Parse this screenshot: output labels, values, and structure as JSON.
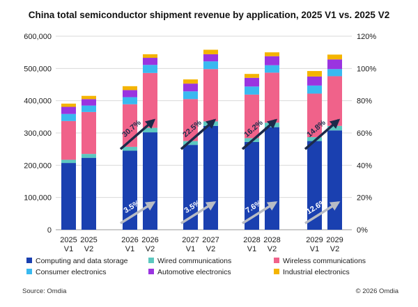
{
  "title": "China total semiconductor shipment revenue by application, 2025 V1 vs. 2025 V2",
  "source": "Source: Omdia",
  "copyright": "© 2026 Omdia",
  "colors": {
    "computing": "#1a40b0",
    "wired": "#5cc8c0",
    "wireless": "#f0628a",
    "consumer": "#39b9f0",
    "automotive": "#9a34e0",
    "industrial": "#f4b400",
    "arrow_v2": "#1c2a4a",
    "arrow_v1": "#b8bcc4"
  },
  "chart_data": {
    "type": "bar",
    "stacked": true,
    "title": "China total semiconductor shipment revenue by application, 2025 V1 vs. 2025 V2",
    "ylim": [
      0,
      600000
    ],
    "yticks": [
      "0",
      "100,000",
      "200,000",
      "300,000",
      "400,000",
      "500,000",
      "600,000"
    ],
    "y2lim": [
      0,
      120
    ],
    "y2ticks": [
      "0%",
      "20%",
      "40%",
      "60%",
      "80%",
      "100%",
      "120%"
    ],
    "groups": [
      {
        "year": "2025",
        "bars": [
          "V1",
          "V2"
        ]
      },
      {
        "year": "2026",
        "bars": [
          "V1",
          "V2"
        ]
      },
      {
        "year": "2027",
        "bars": [
          "V1",
          "V2"
        ]
      },
      {
        "year": "2028",
        "bars": [
          "V1",
          "V2"
        ]
      },
      {
        "year": "2029",
        "bars": [
          "V1",
          "V2"
        ]
      }
    ],
    "categories": [
      "2025 V1",
      "2025 V2",
      "2026 V1",
      "2026 V2",
      "2027 V1",
      "2027 V2",
      "2028 V1",
      "2028 V2",
      "2029 V1",
      "2029 V2"
    ],
    "series": [
      {
        "name": "Computing and data storage",
        "key": "computing",
        "values": [
          207000,
          223000,
          245000,
          302000,
          263000,
          322000,
          272000,
          318000,
          275000,
          308000
        ]
      },
      {
        "name": "Wired communications",
        "key": "wired",
        "values": [
          10000,
          12000,
          12000,
          14000,
          12000,
          14000,
          12000,
          14000,
          12000,
          14000
        ]
      },
      {
        "name": "Wireless communications",
        "key": "wireless",
        "values": [
          120000,
          130000,
          132000,
          170000,
          130000,
          162000,
          135000,
          155000,
          135000,
          154000
        ]
      },
      {
        "name": "Consumer electronics",
        "key": "consumer",
        "values": [
          22000,
          20000,
          22000,
          25000,
          24000,
          24000,
          25000,
          23000,
          25000,
          22000
        ]
      },
      {
        "name": "Automotive electronics",
        "key": "automotive",
        "values": [
          22000,
          20000,
          22000,
          22000,
          24000,
          22000,
          27000,
          28000,
          28000,
          30000
        ]
      },
      {
        "name": "Industrial electronics",
        "key": "industrial",
        "values": [
          10000,
          10000,
          12000,
          11000,
          13000,
          14000,
          12000,
          12000,
          17000,
          15000
        ]
      }
    ],
    "annotations": [
      {
        "text": "30.7%",
        "group": 1,
        "arrow": "v2"
      },
      {
        "text": "22.5%",
        "group": 2,
        "arrow": "v2"
      },
      {
        "text": "16.2%",
        "group": 3,
        "arrow": "v2"
      },
      {
        "text": "14.8%",
        "group": 4,
        "arrow": "v2"
      },
      {
        "text": "3.5%",
        "group": 1,
        "arrow": "v1"
      },
      {
        "text": "3.5%",
        "group": 2,
        "arrow": "v1"
      },
      {
        "text": "7.6%",
        "group": 3,
        "arrow": "v1"
      },
      {
        "text": "12.6%",
        "group": 4,
        "arrow": "v1"
      }
    ]
  }
}
